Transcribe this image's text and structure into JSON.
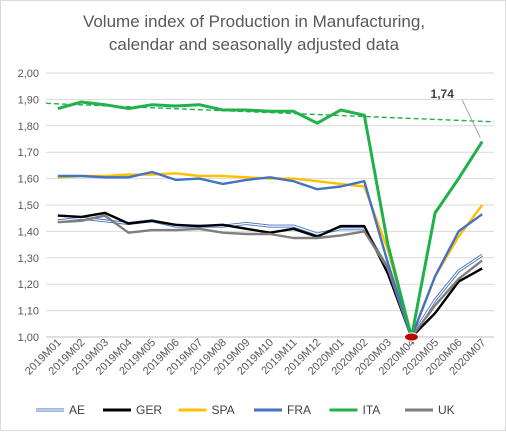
{
  "chart_data": {
    "type": "line",
    "title": [
      "Volume index of Production in Manufacturing,",
      "calendar and seasonally adjusted data"
    ],
    "xlabel": "",
    "ylabel": "",
    "ylim": [
      1.0,
      2.0
    ],
    "ytick_step": 0.1,
    "y_tick_labels": [
      "1,00",
      "1,10",
      "1,20",
      "1,30",
      "1,40",
      "1,50",
      "1,60",
      "1,70",
      "1,80",
      "1,90",
      "2,00"
    ],
    "categories": [
      "2019M01",
      "2019M02",
      "2019M03",
      "2019M04",
      "2019M05",
      "2019M06",
      "2019M07",
      "2019M08",
      "2019M09",
      "2019M10",
      "2019M11",
      "2019M12",
      "2020M01",
      "2020M02",
      "2020M03",
      "2020M04",
      "2020M05",
      "2020M06",
      "2020M07"
    ],
    "grid": true,
    "legend_position": "bottom",
    "series": [
      {
        "name": "AE",
        "color": "#4472c4",
        "style": "double",
        "values": [
          1.44,
          1.45,
          1.44,
          1.43,
          1.44,
          1.42,
          1.42,
          1.42,
          1.43,
          1.42,
          1.42,
          1.39,
          1.41,
          1.41,
          1.26,
          1.0,
          1.14,
          1.25,
          1.31
        ]
      },
      {
        "name": "GER",
        "color": "#000000",
        "style": "solid",
        "values": [
          1.46,
          1.455,
          1.47,
          1.43,
          1.44,
          1.425,
          1.42,
          1.425,
          1.41,
          1.395,
          1.41,
          1.38,
          1.42,
          1.42,
          1.24,
          1.0,
          1.09,
          1.21,
          1.26
        ]
      },
      {
        "name": "SPA",
        "color": "#ffc000",
        "style": "solid",
        "values": [
          1.605,
          1.61,
          1.61,
          1.615,
          1.615,
          1.62,
          1.61,
          1.61,
          1.605,
          1.6,
          1.6,
          1.59,
          1.58,
          1.57,
          1.33,
          1.0,
          1.23,
          1.38,
          1.5
        ]
      },
      {
        "name": "FRA",
        "color": "#4472c4",
        "style": "solid",
        "values": [
          1.61,
          1.61,
          1.605,
          1.605,
          1.625,
          1.595,
          1.6,
          1.58,
          1.595,
          1.605,
          1.59,
          1.56,
          1.57,
          1.59,
          1.28,
          1.0,
          1.23,
          1.4,
          1.465
        ]
      },
      {
        "name": "ITA",
        "color": "#21b14b",
        "style": "solid",
        "values": [
          1.865,
          1.89,
          1.88,
          1.865,
          1.88,
          1.875,
          1.88,
          1.86,
          1.86,
          1.855,
          1.855,
          1.81,
          1.86,
          1.84,
          1.35,
          1.0,
          1.47,
          1.6,
          1.74
        ]
      },
      {
        "name": "UK",
        "color": "#7f7f7f",
        "style": "solid",
        "values": [
          1.435,
          1.44,
          1.46,
          1.395,
          1.405,
          1.405,
          1.41,
          1.395,
          1.39,
          1.39,
          1.375,
          1.375,
          1.385,
          1.4,
          1.26,
          1.0,
          1.12,
          1.22,
          1.29
        ]
      }
    ],
    "trendline": {
      "series": "ITA",
      "color": "#21b14b",
      "style": "dashed",
      "start": 1.885,
      "end": 1.815
    },
    "annotations": [
      {
        "text": "1,74",
        "category": "2020M07",
        "value": 1.74
      }
    ],
    "highlight_point": {
      "category": "2020M04",
      "value": 1.0,
      "color": "#c00000"
    }
  }
}
